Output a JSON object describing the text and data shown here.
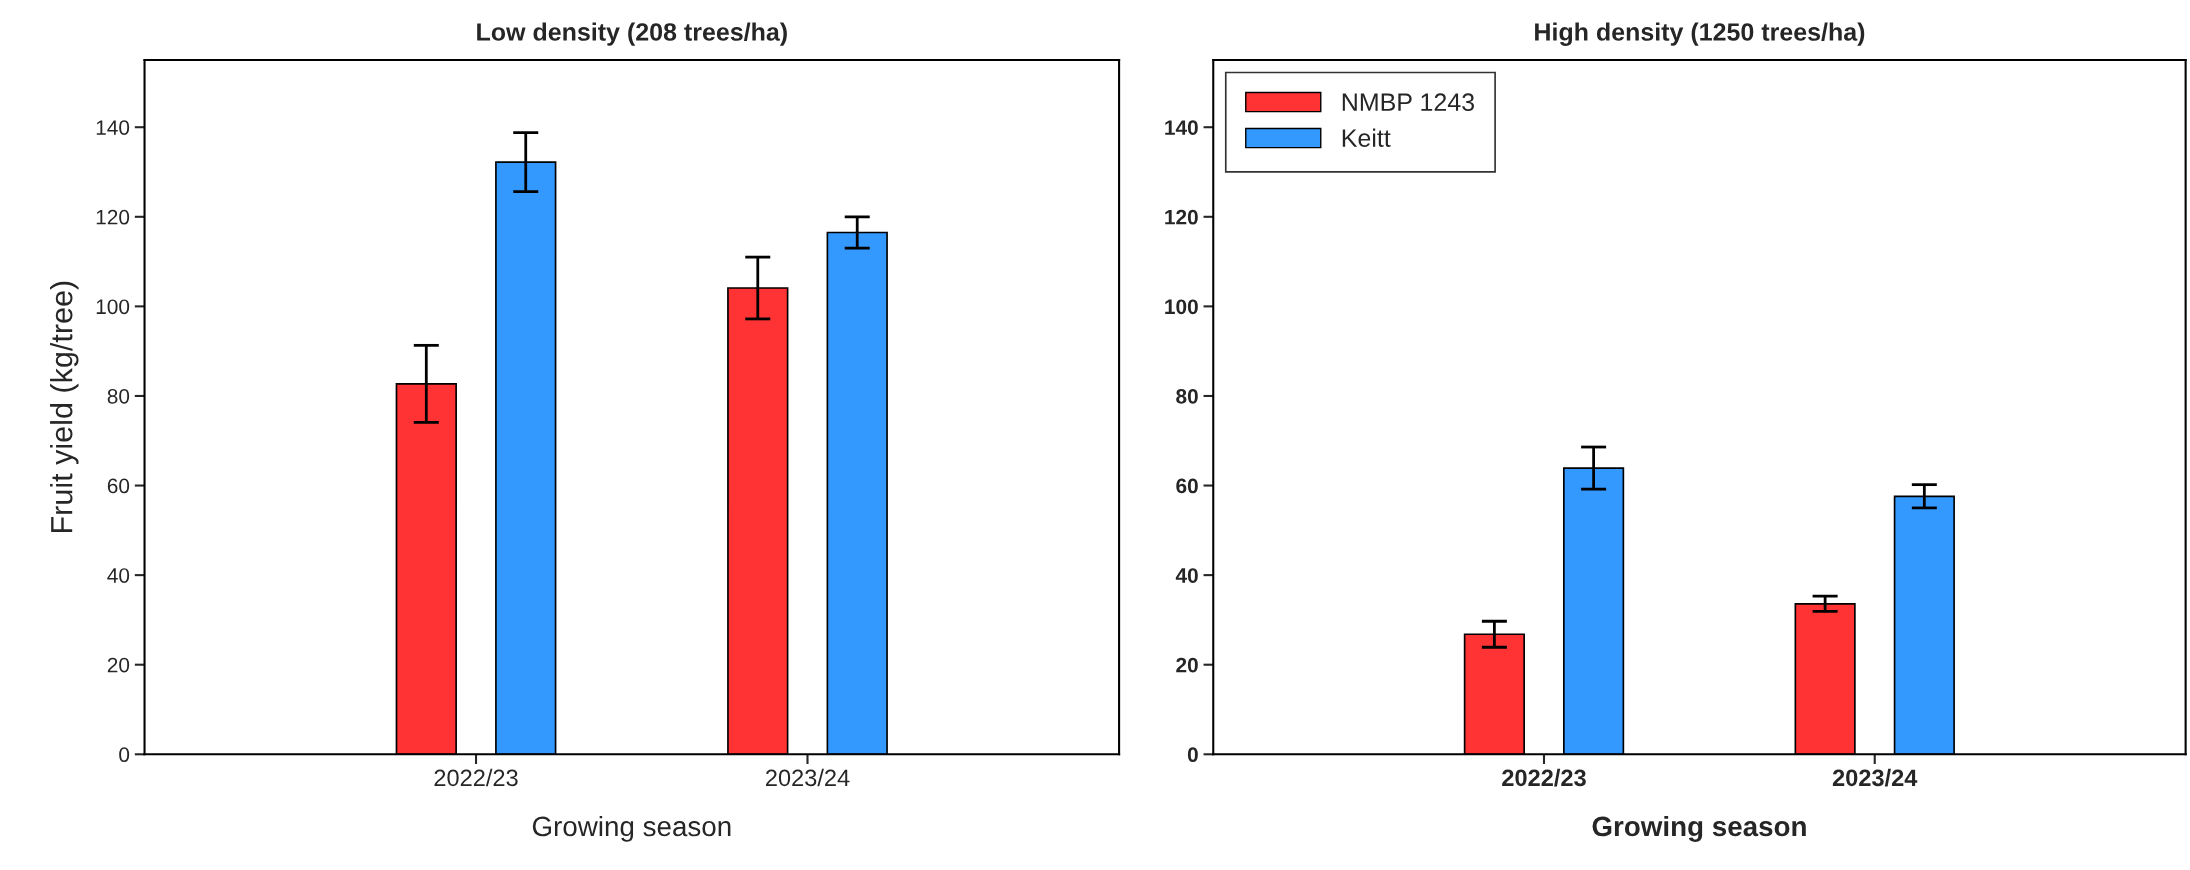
{
  "chart_data": [
    {
      "type": "bar",
      "title": "Low density (208 trees/ha)",
      "xlabel": "Growing season",
      "ylabel": "Fruit yield (kg/tree)",
      "categories": [
        "2022/23",
        "2023/24"
      ],
      "ylim": [
        0,
        155
      ],
      "yticks": [
        0,
        20,
        40,
        60,
        80,
        100,
        120,
        140
      ],
      "grid": false,
      "legend": false,
      "series": [
        {
          "color": "#ff3333",
          "values": [
            82.7,
            104.1
          ],
          "errors": [
            8.6,
            6.9
          ]
        },
        {
          "color": "#3399ff",
          "values": [
            132.2,
            116.5
          ],
          "errors": [
            6.6,
            3.5
          ]
        }
      ]
    },
    {
      "type": "bar",
      "title": "High density (1250 trees/ha)",
      "xlabel": "Growing season",
      "categories": [
        "2022/23",
        "2023/24"
      ],
      "ylim": [
        0,
        155
      ],
      "yticks": [
        0,
        20,
        40,
        60,
        80,
        100,
        120,
        140
      ],
      "grid": false,
      "legend": "top left",
      "series": [
        {
          "name": "NMBP 1243",
          "color": "#ff3333",
          "values": [
            26.8,
            33.6
          ],
          "errors": [
            2.9,
            1.7
          ]
        },
        {
          "name": "Keitt",
          "color": "#3399ff",
          "values": [
            63.9,
            57.6
          ],
          "errors": [
            4.7,
            2.6
          ]
        }
      ]
    }
  ]
}
